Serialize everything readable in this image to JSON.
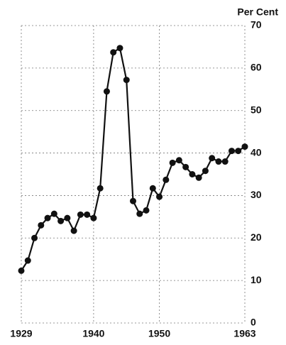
{
  "chart_data": {
    "type": "line",
    "y_label": "Per Cent",
    "x": [
      1929,
      1930,
      1931,
      1932,
      1933,
      1934,
      1935,
      1936,
      1937,
      1938,
      1939,
      1940,
      1941,
      1942,
      1943,
      1944,
      1945,
      1946,
      1947,
      1948,
      1949,
      1950,
      1951,
      1952,
      1953,
      1954,
      1955,
      1956,
      1957,
      1958,
      1959,
      1960,
      1961,
      1962,
      1963
    ],
    "values": [
      12.3,
      14.7,
      20,
      23,
      24.7,
      25.7,
      24,
      24.7,
      21.7,
      25.5,
      25.5,
      24.7,
      31.7,
      54.5,
      63.7,
      64.7,
      57.2,
      28.7,
      25.7,
      26.5,
      31.7,
      29.7,
      33.7,
      37.7,
      38.3,
      36.7,
      35,
      34.2,
      35.8,
      38.8,
      38,
      38,
      40.5,
      40.5,
      41.5
    ],
    "color": "#111111",
    "xlim": [
      1929,
      1963
    ],
    "xticks": [
      1929,
      1940,
      1950,
      1963
    ],
    "ylim": [
      0,
      70
    ],
    "yticks": [
      0,
      10,
      20,
      30,
      40,
      50,
      60,
      70
    ],
    "grid": true
  }
}
